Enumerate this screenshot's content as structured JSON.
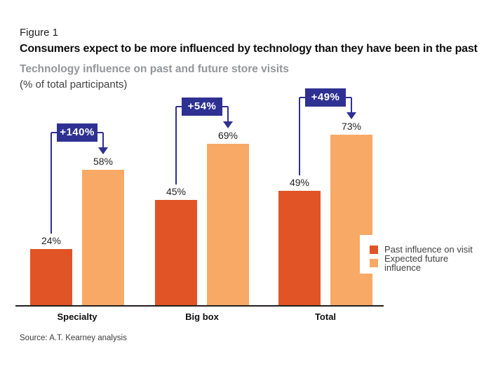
{
  "header": {
    "figure_label": "Figure 1",
    "title": "Consumers expect to be more influenced by technology than they have been in the past",
    "subtitle": "Technology influence on past and future store visits",
    "unit_note": "(% of total participants)"
  },
  "chart_data": {
    "type": "bar",
    "categories": [
      "Specialty",
      "Big box",
      "Total"
    ],
    "series": [
      {
        "name": "Past influence on visit",
        "color": "#e05426",
        "values": [
          24,
          45,
          49
        ]
      },
      {
        "name": "Expected future influence",
        "color": "#f8a966",
        "values": [
          58,
          69,
          73
        ]
      }
    ],
    "value_label_format": "{v}%",
    "increase_annotations": [
      "+140%",
      "+54%",
      "+49%"
    ],
    "annotation_color": "#2e3192",
    "axis_color": "#231f20",
    "ylim": [
      0,
      100
    ],
    "grid": false,
    "legend_position": "right-overlay"
  },
  "source": "Source: A.T. Kearney analysis"
}
